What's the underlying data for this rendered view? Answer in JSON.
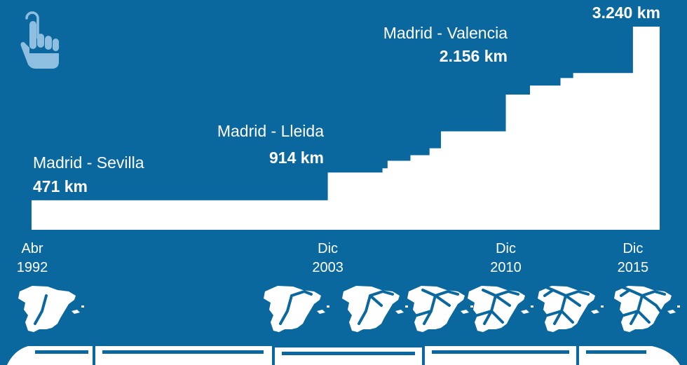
{
  "chart_data": {
    "type": "area",
    "step": true,
    "title": "",
    "xlabel": "",
    "ylabel": "",
    "x_ticks": [
      {
        "line1": "Abr",
        "line2": "1992",
        "year": 1992.3
      },
      {
        "line1": "Dic",
        "line2": "2003",
        "year": 2003.95
      },
      {
        "line1": "Dic",
        "line2": "2010",
        "year": 2010.95
      },
      {
        "line1": "Dic",
        "line2": "2015",
        "year": 2015.95
      }
    ],
    "xlim": [
      1992.3,
      2017
    ],
    "ylim": [
      0,
      3240
    ],
    "series": [
      {
        "x": [
          1992.3,
          2003.95,
          2006.1,
          2006.3,
          2007.2,
          2007.95,
          2008.4,
          2010.95,
          2011.9,
          2013.1,
          2013.6,
          2015.2,
          2015.95,
          2017
        ],
        "y": [
          471,
          914,
          980,
          1100,
          1190,
          1300,
          1570,
          2156,
          2300,
          2420,
          2500,
          2500,
          3240,
          3240
        ]
      }
    ],
    "annotations": [
      {
        "route": "Madrid - Sevilla",
        "km": "471 km"
      },
      {
        "route": "Madrid - Lleida",
        "km": "914 km"
      },
      {
        "route": "Madrid - Valencia",
        "km": "2.156 km"
      },
      {
        "route": "",
        "km": "3.240 km"
      }
    ]
  },
  "icons": {
    "tap": "tap-hand-icon",
    "train": "high-speed-train-icon",
    "maps": "spain-network-map-icon"
  },
  "colors": {
    "background": "#0a689f",
    "fill": "#ffffff",
    "icon": "#8fbfe0"
  }
}
